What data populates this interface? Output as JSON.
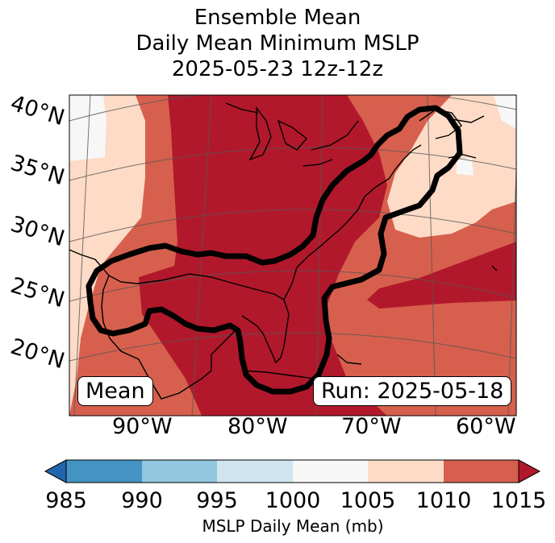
{
  "title": {
    "line1": "Ensemble Mean",
    "line2": "Daily Mean Minimum MSLP",
    "line3": "2025-05-23 12z-12z"
  },
  "map": {
    "latitude_labels": [
      "40°N",
      "35°N",
      "30°N",
      "25°N",
      "20°N"
    ],
    "longitude_labels": [
      "90°W",
      "80°W",
      "70°W",
      "60°W"
    ],
    "left_box": "Mean",
    "right_box": "Run: 2025-05-18",
    "contour_color": "#000000",
    "coastline_color": "#000000"
  },
  "colorbar": {
    "ticks": [
      "985",
      "990",
      "995",
      "1000",
      "1005",
      "1010",
      "1015"
    ],
    "label": "MSLP Daily Mean (mb)",
    "extend": "both",
    "colors": [
      "#2166ac",
      "#4393c3",
      "#92c5de",
      "#d1e5f0",
      "#f7f7f7",
      "#fddbc7",
      "#d6604d",
      "#b2182b"
    ]
  }
}
